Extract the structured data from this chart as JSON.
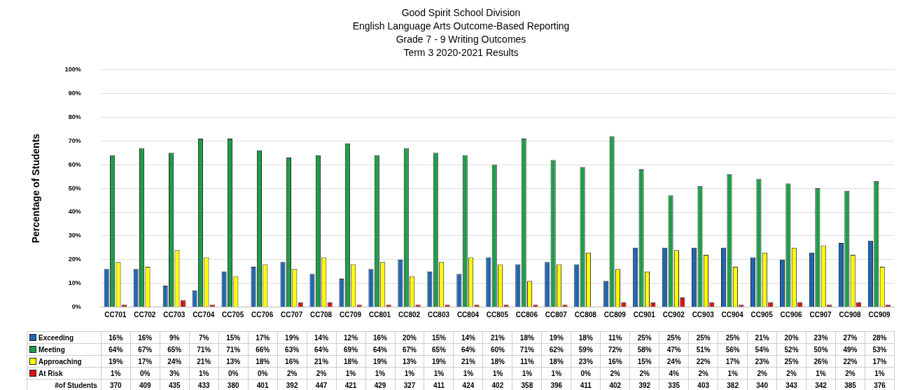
{
  "chart_data": {
    "type": "bar",
    "title": "Good Spirit School Division",
    "subtitle": "English Language Arts Outcome-Based Reporting\nGrade 7 - 9 Writing Outcomes\nTerm 3 2020-2021 Results",
    "ylabel": "Percentage of Students",
    "categories": [
      "CC701",
      "CC702",
      "CC703",
      "CC704",
      "CC705",
      "CC706",
      "CC707",
      "CC708",
      "CC709",
      "CC801",
      "CC802",
      "CC803",
      "CC804",
      "CC805",
      "CC806",
      "CC807",
      "CC808",
      "CC809",
      "CC901",
      "CC902",
      "CC903",
      "CC904",
      "CC905",
      "CC906",
      "CC907",
      "CC908",
      "CC909"
    ],
    "series": [
      {
        "name": "Exceeding",
        "color": "#1f66b5",
        "values": [
          16,
          16,
          9,
          7,
          15,
          17,
          19,
          14,
          12,
          16,
          20,
          15,
          14,
          21,
          18,
          19,
          18,
          11,
          25,
          25,
          25,
          25,
          21,
          20,
          23,
          27,
          28
        ],
        "value_labels": [
          "16%",
          "16%",
          "9%",
          "7%",
          "15%",
          "17%",
          "19%",
          "14%",
          "12%",
          "16%",
          "20%",
          "15%",
          "14%",
          "21%",
          "18%",
          "19%",
          "18%",
          "11%",
          "25%",
          "25%",
          "25%",
          "25%",
          "21%",
          "20%",
          "23%",
          "27%",
          "28%"
        ]
      },
      {
        "name": "Meeting",
        "color": "#1e9e4a",
        "values": [
          64,
          67,
          65,
          71,
          71,
          66,
          63,
          64,
          69,
          64,
          67,
          65,
          64,
          60,
          71,
          62,
          59,
          72,
          58,
          47,
          51,
          56,
          54,
          52,
          50,
          49,
          53
        ],
        "value_labels": [
          "64%",
          "67%",
          "65%",
          "71%",
          "71%",
          "66%",
          "63%",
          "64%",
          "69%",
          "64%",
          "67%",
          "65%",
          "64%",
          "60%",
          "71%",
          "62%",
          "59%",
          "72%",
          "58%",
          "47%",
          "51%",
          "56%",
          "54%",
          "52%",
          "50%",
          "49%",
          "53%"
        ]
      },
      {
        "name": "Approaching",
        "color": "#ffff00",
        "values": [
          19,
          17,
          24,
          21,
          13,
          18,
          16,
          21,
          18,
          19,
          13,
          19,
          21,
          18,
          11,
          18,
          23,
          16,
          15,
          24,
          22,
          17,
          23,
          25,
          26,
          22,
          17
        ],
        "value_labels": [
          "19%",
          "17%",
          "24%",
          "21%",
          "13%",
          "18%",
          "16%",
          "21%",
          "18%",
          "19%",
          "13%",
          "19%",
          "21%",
          "18%",
          "11%",
          "18%",
          "23%",
          "16%",
          "15%",
          "24%",
          "22%",
          "17%",
          "23%",
          "25%",
          "26%",
          "22%",
          "17%"
        ]
      },
      {
        "name": "At Risk",
        "color": "#e01010",
        "values": [
          1,
          0,
          3,
          1,
          0,
          0,
          2,
          2,
          1,
          1,
          1,
          1,
          1,
          1,
          1,
          1,
          0,
          2,
          2,
          4,
          2,
          1,
          2,
          2,
          1,
          2,
          1
        ],
        "value_labels": [
          "1%",
          "0%",
          "3%",
          "1%",
          "0%",
          "0%",
          "2%",
          "2%",
          "1%",
          "1%",
          "1%",
          "1%",
          "1%",
          "1%",
          "1%",
          "1%",
          "0%",
          "2%",
          "2%",
          "4%",
          "2%",
          "1%",
          "2%",
          "2%",
          "1%",
          "2%",
          "1%"
        ]
      }
    ],
    "ylim": [
      0,
      100
    ],
    "yticks": [
      {
        "value": 0,
        "label": "0%"
      },
      {
        "value": 10,
        "label": "10%"
      },
      {
        "value": 20,
        "label": "20%"
      },
      {
        "value": 30,
        "label": "30%"
      },
      {
        "value": 40,
        "label": "40%"
      },
      {
        "value": 50,
        "label": "50%"
      },
      {
        "value": 60,
        "label": "60%"
      },
      {
        "value": 70,
        "label": "70%"
      },
      {
        "value": 80,
        "label": "80%"
      },
      {
        "value": 90,
        "label": "90%"
      },
      {
        "value": 100,
        "label": "100%"
      }
    ],
    "grid": "y",
    "legend": "bottom",
    "annotations": [
      "#of Students",
      "370",
      "409",
      "435",
      "433",
      "380",
      "401",
      "392",
      "447",
      "421",
      "429",
      "327",
      "411",
      "424",
      "402",
      "358",
      "396",
      "411",
      "402",
      "392",
      "335",
      "403",
      "382",
      "340",
      "343",
      "342",
      "385",
      "376"
    ]
  }
}
